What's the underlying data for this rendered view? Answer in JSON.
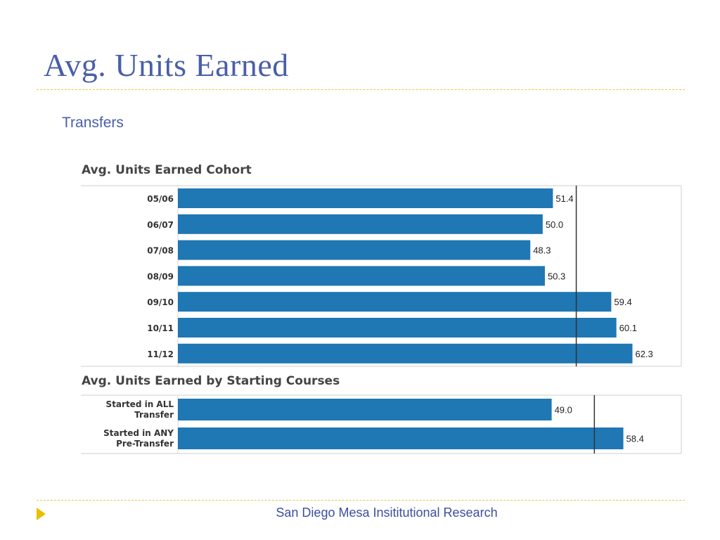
{
  "slide": {
    "title": "Avg. Units Earned",
    "subtitle": "Transfers",
    "footer": "San Diego Mesa Insititutional Research"
  },
  "colors": {
    "bar": "#1f77b4",
    "title": "#4a5fa8",
    "accent": "#e8c000",
    "reference_line": "#333333"
  },
  "chart_data": [
    {
      "type": "bar",
      "orientation": "horizontal",
      "title": "Avg. Units Earned Cohort",
      "categories": [
        "05/06",
        "06/07",
        "07/08",
        "08/09",
        "09/10",
        "10/11",
        "11/12"
      ],
      "values": [
        51.4,
        50.0,
        48.3,
        50.3,
        59.4,
        60.1,
        62.3
      ],
      "value_labels": [
        "51.4",
        "50.0",
        "48.3",
        "50.3",
        "59.4",
        "60.1",
        "62.3"
      ],
      "reference_line": 54.6,
      "xlim": [
        0,
        69
      ]
    },
    {
      "type": "bar",
      "orientation": "horizontal",
      "title": "Avg. Units Earned by Starting Courses",
      "categories": [
        [
          "Started in ALL",
          "Transfer"
        ],
        [
          "Started in ANY",
          "Pre-Transfer"
        ]
      ],
      "values": [
        49.0,
        58.4
      ],
      "value_labels": [
        "49.0",
        "58.4"
      ],
      "reference_line": 54.6,
      "xlim": [
        0,
        66
      ]
    }
  ]
}
